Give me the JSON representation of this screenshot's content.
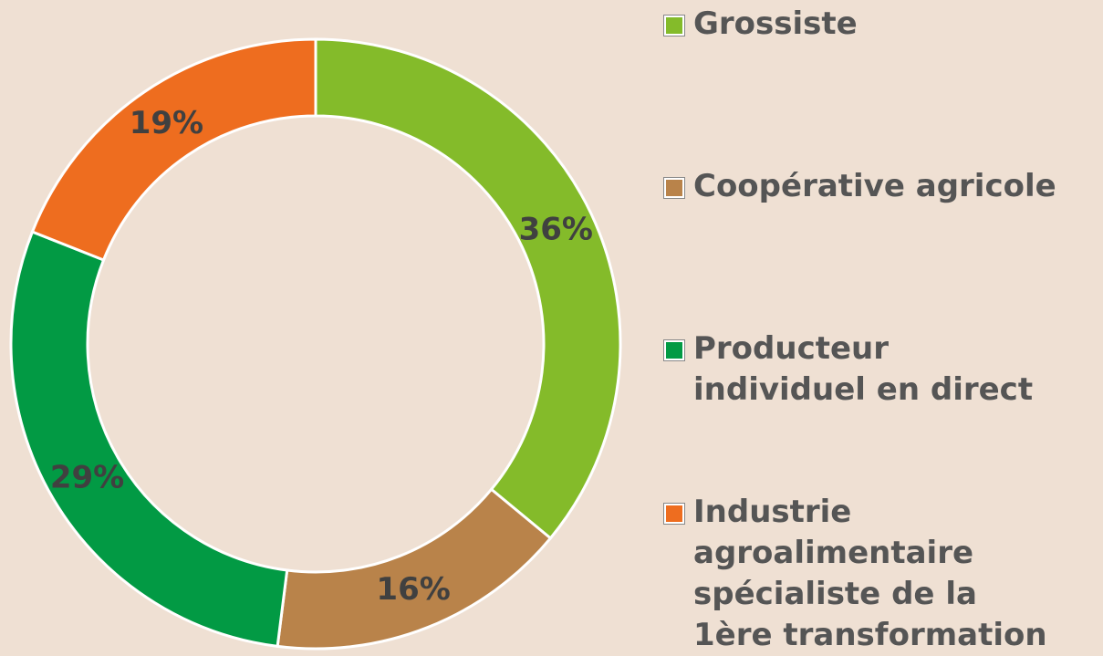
{
  "chart_data": {
    "type": "donut",
    "categories": [
      "Grossiste",
      "Coopérative agricole",
      "Producteur\nindividuel en direct",
      "Industrie\nagroalimentaire\nspécialiste de la\n1ère transformation"
    ],
    "values": [
      36,
      16,
      29,
      19
    ],
    "value_labels": [
      "36%",
      "16%",
      "29%",
      "19%"
    ],
    "colors": [
      "#84bb2a",
      "#b9834a",
      "#029a44",
      "#ee6d1f"
    ],
    "legend": "right"
  }
}
